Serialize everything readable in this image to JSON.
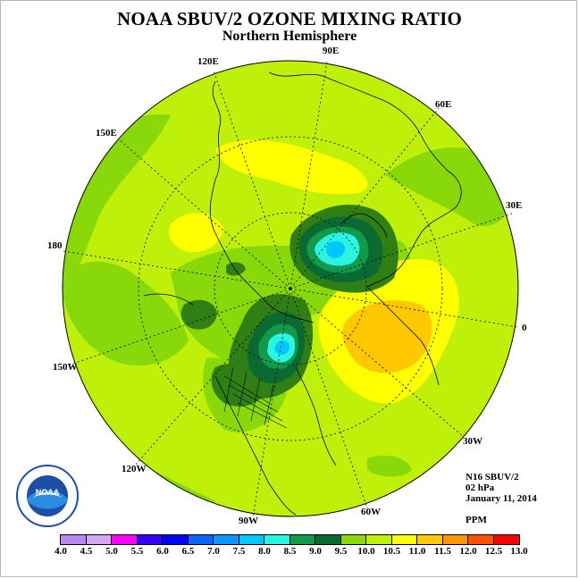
{
  "title": "NOAA SBUV/2 OZONE MIXING RATIO",
  "subtitle": "Northern Hemisphere",
  "longitude_labels": {
    "90E": "90E",
    "60E": "60E",
    "30E": "30E",
    "0": "0",
    "30W": "30W",
    "60W": "60W",
    "90W": "90W",
    "120W": "120W",
    "150W": "150W",
    "180": "180",
    "150E": "150E",
    "120E": "120E"
  },
  "info": {
    "satellite": "N16 SBUV/2",
    "level": "02 hPa",
    "date": "January 11, 2014"
  },
  "units": "PPM",
  "colorbar": {
    "ticks": [
      "4.0",
      "4.5",
      "5.0",
      "5.5",
      "6.0",
      "6.5",
      "7.0",
      "7.5",
      "8.0",
      "8.5",
      "9.0",
      "9.5",
      "10.0",
      "10.5",
      "11.0",
      "11.5",
      "12.0",
      "12.5",
      "13.0"
    ],
    "colors": [
      "#b987ee",
      "#d6a6f2",
      "#ff00ff",
      "#7d00ff",
      "#0000ff",
      "#0a64ff",
      "#0a96ff",
      "#00c8ff",
      "#2af5e0",
      "#129a4a",
      "#0a6a32",
      "#2f7f14",
      "#88d80a",
      "#bff00a",
      "#ffff00",
      "#ffc800",
      "#ff9600",
      "#ff5000",
      "#ff0000",
      "#b00000",
      "#8a5a3c"
    ]
  },
  "logo_text": {
    "center": "NOAA",
    "ring": "NATIONAL OCEANIC AND ATMOSPHERIC ADMINISTRATION · U.S. DEPARTMENT OF COMMERCE"
  },
  "map": {
    "background_color": "#bfee0a",
    "field_colors": {
      "9.0": "#2f7f14",
      "9.5": "#88d80a",
      "10.0": "#bff00a",
      "10.5": "#ffff00",
      "11.0": "#ffc800",
      "8.5": "#0a6a32",
      "8.0": "#129a4a",
      "7.5": "#2af5e0",
      "7.0": "#00c8ff"
    }
  }
}
